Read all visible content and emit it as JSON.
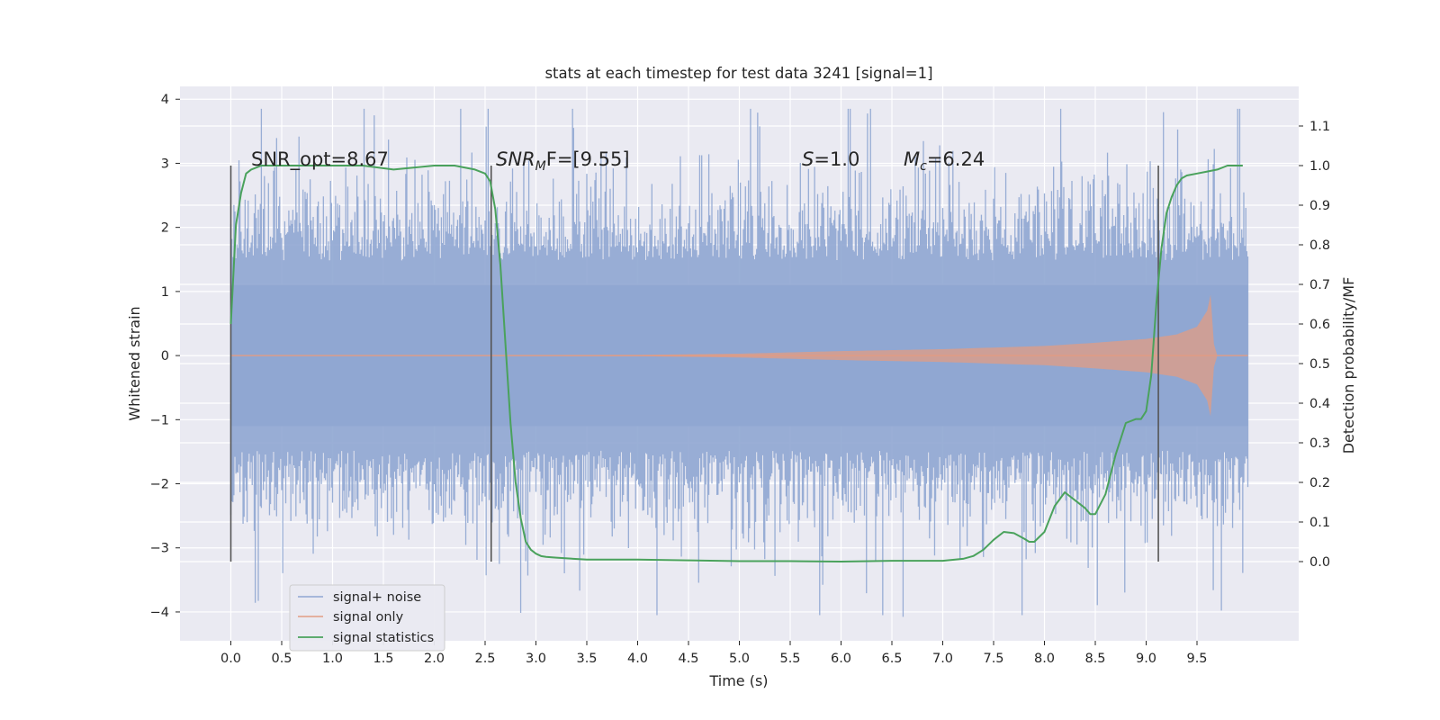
{
  "chart_data": {
    "type": "line",
    "title": "stats at each timestep for test data 3241 [signal=1]",
    "xlabel": "Time (s)",
    "ylabel": "Whitened strain",
    "ylabel_right": "Detection probability/MF",
    "xlim": [
      -0.5,
      10.5
    ],
    "ylim": [
      -4.45,
      4.2
    ],
    "ylim_right": [
      -0.2,
      1.2
    ],
    "x_ticks": [
      "0.0",
      "0.5",
      "1.0",
      "1.5",
      "2.0",
      "2.5",
      "3.0",
      "3.5",
      "4.0",
      "4.5",
      "5.0",
      "5.5",
      "6.0",
      "6.5",
      "7.0",
      "7.5",
      "8.0",
      "8.5",
      "9.0",
      "9.5"
    ],
    "y_ticks": [
      "−4",
      "−3",
      "−2",
      "−1",
      "0",
      "1",
      "2",
      "3",
      "4"
    ],
    "y_ticks_right": [
      "0.0",
      "0.1",
      "0.2",
      "0.3",
      "0.4",
      "0.5",
      "0.6",
      "0.7",
      "0.8",
      "0.9",
      "1.0",
      "1.1"
    ],
    "grid": true,
    "legend_position": "lower-left",
    "annotations": {
      "snr_opt": "SNR_opt=8.67",
      "snr_mf_prefix": "SNR",
      "snr_mf_sub": "M",
      "snr_mf_rest": "F=[9.55]",
      "s_prefix": "S",
      "s_rest": "=1.0",
      "mc_prefix": "M",
      "mc_sub": "c",
      "mc_rest": "=6.24"
    },
    "vlines_x": [
      0.0,
      2.56,
      9.12
    ],
    "series": [
      {
        "name": "signal+ noise",
        "color": "#8fa6d2",
        "x_range": [
          0.0,
          10.0
        ],
        "typical_amplitude": 1.1,
        "peak_range": [
          -4.05,
          3.85
        ]
      },
      {
        "name": "signal only",
        "color": "#e29c83",
        "x_range": [
          0.0,
          10.0
        ],
        "merger_time": 9.65,
        "envelope": [
          [
            0.0,
            0.0
          ],
          [
            4.0,
            0.01
          ],
          [
            5.0,
            0.03
          ],
          [
            6.0,
            0.07
          ],
          [
            7.0,
            0.1
          ],
          [
            8.0,
            0.15
          ],
          [
            8.5,
            0.2
          ],
          [
            9.0,
            0.26
          ],
          [
            9.3,
            0.33
          ],
          [
            9.5,
            0.45
          ],
          [
            9.6,
            0.7
          ],
          [
            9.65,
            1.07
          ],
          [
            9.67,
            0.0
          ],
          [
            10.0,
            0.0
          ]
        ]
      },
      {
        "name": "signal statistics",
        "color": "#4aa25c",
        "axis": "right",
        "x": [
          0.0,
          0.05,
          0.1,
          0.15,
          0.2,
          0.3,
          0.5,
          1.0,
          1.3,
          1.6,
          2.0,
          2.2,
          2.4,
          2.5,
          2.55,
          2.6,
          2.65,
          2.7,
          2.75,
          2.8,
          2.85,
          2.9,
          2.95,
          3.0,
          3.05,
          3.1,
          3.2,
          3.5,
          4.0,
          4.5,
          5.0,
          5.5,
          6.0,
          6.5,
          7.0,
          7.2,
          7.3,
          7.4,
          7.5,
          7.6,
          7.7,
          7.8,
          7.85,
          7.9,
          8.0,
          8.1,
          8.2,
          8.3,
          8.4,
          8.45,
          8.5,
          8.6,
          8.7,
          8.8,
          8.9,
          8.95,
          9.0,
          9.05,
          9.1,
          9.15,
          9.2,
          9.25,
          9.3,
          9.35,
          9.4,
          9.5,
          9.6,
          9.7,
          9.8,
          9.9,
          9.95
        ],
        "y": [
          0.6,
          0.85,
          0.93,
          0.98,
          0.99,
          1.0,
          1.0,
          1.0,
          1.0,
          0.99,
          1.0,
          1.0,
          0.99,
          0.98,
          0.96,
          0.89,
          0.75,
          0.55,
          0.35,
          0.2,
          0.11,
          0.05,
          0.03,
          0.02,
          0.014,
          0.012,
          0.01,
          0.005,
          0.005,
          0.003,
          0.001,
          0.001,
          0.0,
          0.002,
          0.002,
          0.007,
          0.014,
          0.03,
          0.055,
          0.075,
          0.072,
          0.058,
          0.05,
          0.05,
          0.075,
          0.14,
          0.175,
          0.155,
          0.135,
          0.12,
          0.12,
          0.17,
          0.27,
          0.35,
          0.36,
          0.36,
          0.38,
          0.47,
          0.65,
          0.79,
          0.88,
          0.92,
          0.95,
          0.968,
          0.975,
          0.98,
          0.985,
          0.99,
          1.0,
          1.0,
          1.0
        ]
      }
    ]
  }
}
